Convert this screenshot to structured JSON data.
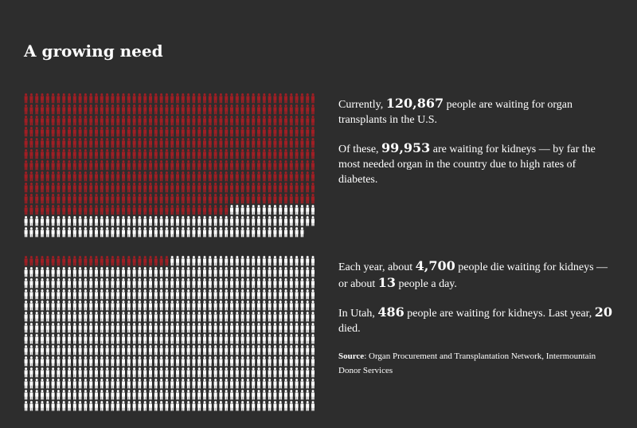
{
  "title": "A growing need",
  "colors": {
    "background": "#2d2d2d",
    "highlight": "#a01e24",
    "base": "#ffffff",
    "text": "#ffffff"
  },
  "icon": "person-icon",
  "top_text": {
    "p1_pre": "Currently, ",
    "p1_num": "120,867",
    "p1_post": " people are waiting for organ transplants in the U.S.",
    "p2_pre": "Of these, ",
    "p2_num": "99,953",
    "p2_post": " are waiting for kidneys — by far the most needed organ in the country due to high rates of diabetes."
  },
  "bottom_text": {
    "p1_pre": "Each year, about ",
    "p1_num": "4,700",
    "p1_mid": " people die waiting for kidneys — or about ",
    "p1_num2": "13",
    "p1_post": " people a day.",
    "p2_pre": "In Utah, ",
    "p2_num": "486",
    "p2_mid": " people are waiting for kidneys. Last year, ",
    "p2_num2": "20",
    "p2_post": " died.",
    "source_label": "Source",
    "source_text": ": Organ Procurement and Transplantation Network, Intermountain Donor Services"
  },
  "chart_data": [
    {
      "type": "pictogram",
      "unit": "person-icon",
      "columns": 54,
      "rows": 13,
      "total_icons": 700,
      "highlighted_icons": 578,
      "total": 120867,
      "highlighted": 99953
    },
    {
      "type": "pictogram",
      "unit": "person-icon",
      "columns": 54,
      "rows": 14,
      "total_icons": 756,
      "highlighted_icons": 27,
      "total": 99953,
      "highlighted": 4700
    }
  ]
}
